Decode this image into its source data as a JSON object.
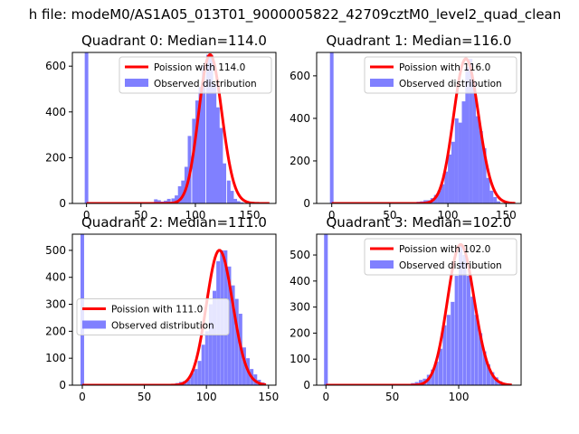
{
  "figure_title": "h file: modeM0/AS1A05_013T01_9000005822_42709cztM0_level2_quad_clean",
  "legend_labels_observed": "Observed distribution",
  "colors": {
    "poisson": "#ff0000",
    "observed": "#8080ff",
    "axes": "#000000",
    "background": "#ffffff"
  },
  "chart_data": [
    {
      "type": "bar",
      "title": "Quadrant 0: Median=114.0",
      "median": 114.0,
      "xlim": [
        -13,
        174
      ],
      "ylim": [
        0,
        660
      ],
      "xticks": [
        0,
        50,
        100,
        150
      ],
      "yticks": [
        0,
        200,
        400,
        600
      ],
      "legend_loc": "upper right",
      "legend": [
        "Poission with 114.0",
        "Observed distribution"
      ],
      "bin_width": 3.3,
      "spike": {
        "x": 0,
        "value": 660
      },
      "series": [
        {
          "name": "Observed distribution",
          "kind": "histogram",
          "x": [
            62,
            65,
            68,
            71,
            74,
            78,
            81,
            84,
            87,
            90,
            93,
            97,
            100,
            103,
            106,
            110,
            113,
            116,
            119,
            122,
            125,
            129,
            132,
            135,
            138,
            141
          ],
          "values": [
            18,
            14,
            8,
            12,
            20,
            22,
            35,
            75,
            100,
            160,
            295,
            370,
            450,
            510,
            600,
            650,
            650,
            520,
            420,
            330,
            175,
            100,
            55,
            20,
            10,
            5
          ]
        },
        {
          "name": "Poission with 114.0",
          "kind": "line",
          "lambda": 114.0,
          "x_range": [
            0,
            168
          ]
        }
      ]
    },
    {
      "type": "bar",
      "title": "Quadrant 1: Median=116.0",
      "median": 116.0,
      "xlim": [
        -13,
        163
      ],
      "ylim": [
        0,
        710
      ],
      "xticks": [
        0,
        50,
        100,
        150
      ],
      "yticks": [
        0,
        200,
        400,
        600
      ],
      "legend_loc": "upper right",
      "legend": [
        "Poission with 116.0",
        "Observed distribution"
      ],
      "bin_width": 3.1,
      "spike": {
        "x": 0,
        "value": 710
      },
      "series": [
        {
          "name": "Observed distribution",
          "kind": "histogram",
          "x": [
            70,
            73,
            76,
            79,
            82,
            85,
            88,
            91,
            94,
            97,
            100,
            103,
            106,
            109,
            112,
            115,
            118,
            121,
            124,
            127,
            130,
            133,
            136,
            139,
            142
          ],
          "values": [
            5,
            8,
            10,
            15,
            15,
            25,
            40,
            60,
            90,
            150,
            230,
            290,
            400,
            380,
            480,
            640,
            680,
            570,
            410,
            340,
            260,
            120,
            60,
            30,
            10
          ]
        },
        {
          "name": "Poission with 116.0",
          "kind": "line",
          "lambda": 116.0,
          "x_range": [
            0,
            158
          ]
        }
      ]
    },
    {
      "type": "bar",
      "title": "Quadrant 2: Median=111.0",
      "median": 111.0,
      "xlim": [
        -8,
        156
      ],
      "ylim": [
        0,
        560
      ],
      "xticks": [
        0,
        50,
        100,
        150
      ],
      "yticks": [
        0,
        100,
        200,
        300,
        400,
        500
      ],
      "legend_loc": "center left",
      "legend": [
        "Poission with 111.0",
        "Observed distribution"
      ],
      "bin_width": 2.9,
      "spike": {
        "x": 0,
        "value": 560
      },
      "series": [
        {
          "name": "Observed distribution",
          "kind": "histogram",
          "x": [
            66,
            69,
            72,
            75,
            78,
            81,
            84,
            87,
            90,
            93,
            96,
            99,
            102,
            105,
            108,
            111,
            114,
            117,
            120,
            123,
            126,
            129,
            132,
            135,
            138,
            141,
            144
          ],
          "values": [
            5,
            3,
            5,
            8,
            12,
            15,
            20,
            45,
            60,
            90,
            150,
            200,
            300,
            350,
            460,
            500,
            500,
            440,
            370,
            320,
            265,
            140,
            100,
            60,
            40,
            20,
            10
          ]
        },
        {
          "name": "Poission with 111.0",
          "kind": "line",
          "lambda": 111.0,
          "x_range": [
            0,
            148
          ]
        }
      ]
    },
    {
      "type": "bar",
      "title": "Quadrant 3: Median=102.0",
      "median": 102.0,
      "xlim": [
        -7,
        147
      ],
      "ylim": [
        0,
        580
      ],
      "xticks": [
        0,
        50,
        100
      ],
      "yticks": [
        0,
        100,
        200,
        300,
        400,
        500
      ],
      "legend_loc": "upper right",
      "legend": [
        "Poission with 102.0",
        "Observed distribution"
      ],
      "bin_width": 2.8,
      "spike": {
        "x": 0,
        "value": 580
      },
      "series": [
        {
          "name": "Observed distribution",
          "kind": "histogram",
          "x": [
            55,
            58,
            61,
            64,
            67,
            70,
            73,
            76,
            79,
            82,
            85,
            88,
            91,
            94,
            97,
            100,
            103,
            106,
            109,
            112,
            115,
            118,
            121,
            124,
            127,
            130,
            133,
            136
          ],
          "values": [
            3,
            5,
            5,
            8,
            12,
            20,
            25,
            40,
            60,
            90,
            140,
            230,
            270,
            320,
            420,
            540,
            500,
            420,
            340,
            270,
            200,
            130,
            80,
            50,
            30,
            15,
            8,
            3
          ]
        },
        {
          "name": "Poission with 102.0",
          "kind": "line",
          "lambda": 102.0,
          "x_range": [
            0,
            140
          ]
        }
      ]
    }
  ]
}
